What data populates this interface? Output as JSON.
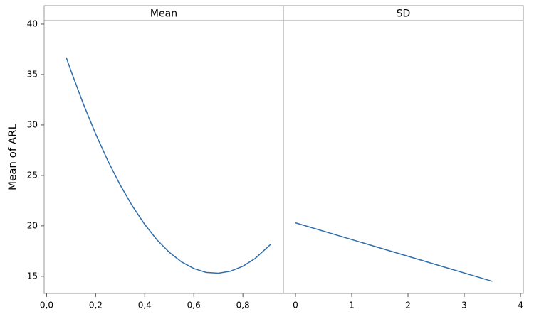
{
  "chart_data": [
    {
      "type": "line",
      "title": "Mean",
      "ylabel": "Mean of ARL",
      "x": [
        0.08,
        0.1,
        0.15,
        0.2,
        0.25,
        0.3,
        0.35,
        0.4,
        0.45,
        0.5,
        0.55,
        0.6,
        0.65,
        0.7,
        0.75,
        0.8,
        0.85,
        0.915
      ],
      "series": [
        {
          "color": "#2f6eab",
          "values": [
            36.7,
            35.32,
            32.07,
            29.11,
            26.43,
            24.05,
            21.95,
            20.14,
            18.61,
            17.38,
            16.43,
            15.77,
            15.39,
            15.31,
            15.51,
            16.0,
            16.77,
            18.21
          ]
        }
      ],
      "xlim": [
        -0.01,
        0.965
      ],
      "xticks": [
        {
          "value": 0,
          "label": "0,0"
        },
        {
          "value": 0.2,
          "label": "0,2"
        },
        {
          "value": 0.4,
          "label": "0,4"
        },
        {
          "value": 0.6,
          "label": "0,6"
        },
        {
          "value": 0.8,
          "label": "0,8"
        }
      ],
      "ylim": [
        13.3,
        40.35
      ],
      "yticks": [
        15,
        20,
        25,
        30,
        35,
        40
      ]
    },
    {
      "type": "line",
      "title": "SD",
      "x": [
        0,
        3.5
      ],
      "series": [
        {
          "color": "#2f6eab",
          "values": [
            20.3,
            14.5
          ]
        }
      ],
      "xlim": [
        -0.215,
        4.05
      ],
      "xticks": [
        0,
        1,
        2,
        3,
        4
      ],
      "ylim": [
        13.3,
        40.35
      ]
    }
  ]
}
